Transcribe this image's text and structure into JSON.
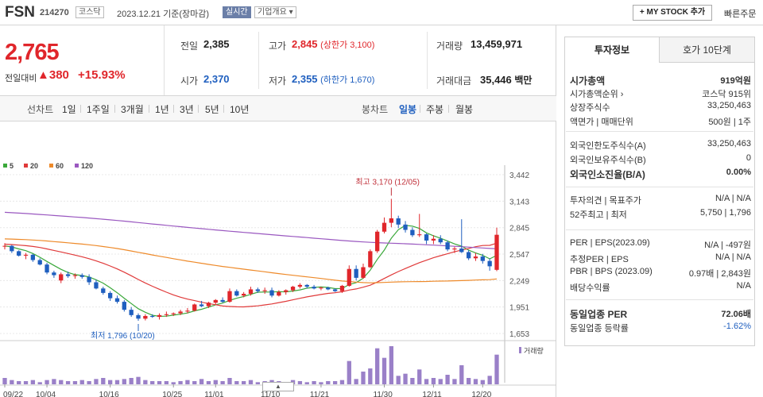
{
  "header": {
    "name": "FSN",
    "code": "214270",
    "market": "코스닥",
    "date": "2023.12.21 기준(장마감)",
    "realtime": "실시간",
    "company": "기업개요 ▾",
    "mystock": "+ MY STOCK 추가",
    "quick_order": "빠른주문"
  },
  "price": {
    "current": "2,765",
    "change_label": "전일대비",
    "change": "▲380",
    "change_pct": "+15.93%"
  },
  "quote": {
    "prev_label": "전일",
    "prev": "2,385",
    "high_label": "고가",
    "high": "2,845",
    "upper_limit": "(상한가 3,100)",
    "volume_label": "거래량",
    "volume": "13,459,971",
    "open_label": "시가",
    "open": "2,370",
    "low_label": "저가",
    "low": "2,355",
    "lower_limit": "(하한가 1,670)",
    "amount_label": "거래대금",
    "amount": "35,446",
    "amount_unit": "백만"
  },
  "periods": {
    "line_label": "선차트",
    "items": [
      "1일",
      "1주일",
      "3개월",
      "1년",
      "3년",
      "5년",
      "10년"
    ],
    "candle_label": "봉차트",
    "candle_items": [
      "일봉",
      "주봉",
      "월봉"
    ],
    "active_candle": "일봉"
  },
  "chart_data": {
    "type": "candlestick",
    "legend": [
      {
        "name": "5",
        "color": "#3aa83a"
      },
      {
        "name": "20",
        "color": "#e03a3a"
      },
      {
        "name": "60",
        "color": "#ee8a2a"
      },
      {
        "name": "120",
        "color": "#9a58c0"
      }
    ],
    "y_ticks": [
      3442,
      3143,
      2845,
      2547,
      2249,
      1951,
      1653
    ],
    "ylim": [
      1653,
      3442
    ],
    "x_labels": [
      "09/22",
      "10/04",
      "10/16",
      "10/25",
      "11/01",
      "11/10",
      "11/21",
      "11/30",
      "12/11",
      "12/20"
    ],
    "x_label_index": [
      0,
      6,
      15,
      24,
      30,
      38,
      45,
      54,
      61,
      68
    ],
    "high_annotation": "최고 3,170 (12/05)",
    "low_annotation": "최저 1,796 (10/20)",
    "volume_label": "거래량",
    "candles": [
      [
        2640,
        2670,
        2600,
        2640
      ],
      [
        2640,
        2650,
        2560,
        2580
      ],
      [
        2580,
        2590,
        2520,
        2530
      ],
      [
        2530,
        2560,
        2490,
        2540
      ],
      [
        2540,
        2550,
        2460,
        2480
      ],
      [
        2480,
        2500,
        2420,
        2430
      ],
      [
        2430,
        2450,
        2320,
        2340
      ],
      [
        2340,
        2360,
        2280,
        2310
      ],
      [
        2250,
        2340,
        2220,
        2320
      ],
      [
        2320,
        2350,
        2280,
        2300
      ],
      [
        2300,
        2330,
        2270,
        2310
      ],
      [
        2310,
        2330,
        2270,
        2290
      ],
      [
        2290,
        2320,
        2200,
        2230
      ],
      [
        2230,
        2260,
        2150,
        2160
      ],
      [
        2160,
        2180,
        2090,
        2110
      ],
      [
        2110,
        2130,
        2020,
        2050
      ],
      [
        2050,
        2080,
        1990,
        2010
      ],
      [
        2010,
        2030,
        1900,
        1920
      ],
      [
        1920,
        1950,
        1840,
        1860
      ],
      [
        1860,
        1880,
        1796,
        1820
      ],
      [
        1820,
        1870,
        1800,
        1850
      ],
      [
        1850,
        1870,
        1830,
        1840
      ],
      [
        1840,
        1880,
        1810,
        1860
      ],
      [
        1860,
        1900,
        1840,
        1870
      ],
      [
        1870,
        1890,
        1850,
        1880
      ],
      [
        1880,
        1920,
        1860,
        1900
      ],
      [
        1900,
        1940,
        1880,
        1910
      ],
      [
        1910,
        1990,
        1900,
        1980
      ],
      [
        1980,
        2020,
        1950,
        1960
      ],
      [
        1960,
        2010,
        1940,
        2000
      ],
      [
        2000,
        2040,
        1980,
        2030
      ],
      [
        2030,
        2060,
        2000,
        2010
      ],
      [
        2010,
        2160,
        2000,
        2130
      ],
      [
        2130,
        2150,
        2070,
        2080
      ],
      [
        2080,
        2120,
        2060,
        2100
      ],
      [
        2100,
        2180,
        2080,
        2150
      ],
      [
        2150,
        2170,
        2110,
        2130
      ],
      [
        2130,
        2170,
        2100,
        2140
      ],
      [
        2140,
        2170,
        2060,
        2080
      ],
      [
        2080,
        2140,
        2070,
        2120
      ],
      [
        2120,
        2150,
        2090,
        2140
      ],
      [
        2140,
        2190,
        2120,
        2180
      ],
      [
        2180,
        2220,
        2160,
        2200
      ],
      [
        2200,
        2210,
        2160,
        2180
      ],
      [
        2180,
        2200,
        2150,
        2160
      ],
      [
        2160,
        2180,
        2140,
        2170
      ],
      [
        2170,
        2180,
        2140,
        2150
      ],
      [
        2150,
        2160,
        2120,
        2130
      ],
      [
        2130,
        2200,
        2110,
        2190
      ],
      [
        2190,
        2420,
        2180,
        2380
      ],
      [
        2380,
        2420,
        2250,
        2280
      ],
      [
        2280,
        2440,
        2270,
        2400
      ],
      [
        2400,
        2600,
        2390,
        2580
      ],
      [
        2580,
        2820,
        2560,
        2800
      ],
      [
        2800,
        2960,
        2780,
        2900
      ],
      [
        2900,
        3170,
        2850,
        2950
      ],
      [
        2950,
        2980,
        2840,
        2880
      ],
      [
        2880,
        2920,
        2790,
        2820
      ],
      [
        2820,
        2850,
        2740,
        2760
      ],
      [
        2760,
        3000,
        2740,
        2770
      ],
      [
        2770,
        2780,
        2660,
        2700
      ],
      [
        2700,
        2760,
        2660,
        2720
      ],
      [
        2720,
        2760,
        2660,
        2680
      ],
      [
        2680,
        2700,
        2580,
        2600
      ],
      [
        2600,
        2630,
        2560,
        2610
      ],
      [
        2610,
        2940,
        2560,
        2570
      ],
      [
        2570,
        2590,
        2480,
        2500
      ],
      [
        2500,
        2560,
        2470,
        2520
      ],
      [
        2520,
        2550,
        2440,
        2470
      ],
      [
        2470,
        2500,
        2360,
        2410
      ],
      [
        2370,
        2845,
        2355,
        2765
      ]
    ],
    "volumes": [
      0.06,
      0.04,
      0.03,
      0.03,
      0.04,
      0.02,
      0.04,
      0.05,
      0.04,
      0.03,
      0.03,
      0.04,
      0.03,
      0.05,
      0.06,
      0.04,
      0.04,
      0.05,
      0.06,
      0.07,
      0.04,
      0.03,
      0.03,
      0.03,
      0.02,
      0.03,
      0.04,
      0.03,
      0.05,
      0.03,
      0.04,
      0.03,
      0.06,
      0.03,
      0.03,
      0.04,
      0.02,
      0.03,
      0.04,
      0.03,
      0.02,
      0.04,
      0.03,
      0.02,
      0.03,
      0.02,
      0.03,
      0.03,
      0.04,
      0.22,
      0.05,
      0.12,
      0.15,
      0.34,
      0.25,
      0.36,
      0.08,
      0.1,
      0.06,
      0.14,
      0.05,
      0.06,
      0.05,
      0.09,
      0.05,
      0.18,
      0.06,
      0.05,
      0.04,
      0.08,
      0.28
    ]
  },
  "right": {
    "tab_active": "투자정보",
    "tab_other": "호가 10단계",
    "rows": [
      {
        "l": "시가총액",
        "v": "919억원",
        "bold": true
      },
      {
        "l": "시가총액순위 ›",
        "v": "코스닥 915위"
      },
      {
        "l": "상장주식수",
        "v": "33,250,463"
      },
      {
        "l": "액면가 | 매매단위",
        "v": "500원 | 1주"
      },
      {
        "l": "외국인한도주식수(A)",
        "v": "33,250,463"
      },
      {
        "l": "외국인보유주식수(B)",
        "v": "0"
      },
      {
        "l": "외국인소진율(B/A)",
        "v": "0.00%",
        "bold": true
      },
      {
        "l": "투자의견 | 목표주가",
        "v": "N/A | N/A"
      },
      {
        "l": "52주최고 | 최저",
        "v": "5,750 | 1,796"
      },
      {
        "l": "PER | EPS(2023.09)",
        "v": "N/A | -497원"
      },
      {
        "l": "추정PER | EPS",
        "v": "N/A | N/A"
      },
      {
        "l": "PBR | BPS (2023.09)",
        "v": "0.97배 | 2,843원"
      },
      {
        "l": "배당수익률",
        "v": "N/A"
      },
      {
        "l": "동일업종 PER",
        "v": "72.06배",
        "bold": true
      },
      {
        "l": "동일업종 등락률",
        "v": "-1.62%",
        "blue": true
      }
    ]
  }
}
